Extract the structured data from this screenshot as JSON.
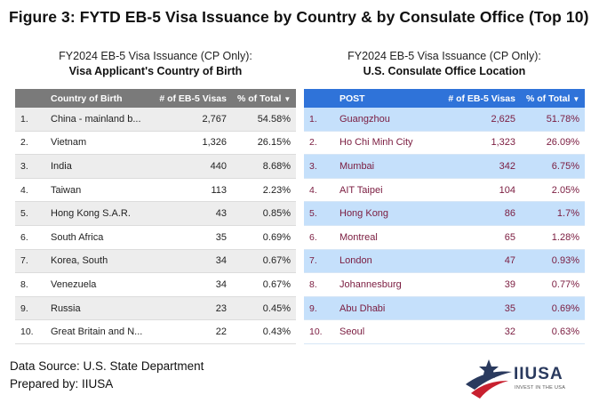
{
  "figure_title": "Figure 3: FYTD EB-5 Visa Issuance by Country & by Consulate Office (Top 10)",
  "left_table": {
    "subtitle": "FY2024 EB-5 Visa Issuance (CP Only):",
    "title": "Visa Applicant's Country of Birth",
    "columns": [
      "",
      "Country of Birth",
      "# of EB-5 Visas",
      "% of Total"
    ],
    "sort_arrow": "▼",
    "rows": [
      {
        "rank": "1.",
        "name": "China - mainland b...",
        "visas": "2,767",
        "pct": "54.58%"
      },
      {
        "rank": "2.",
        "name": "Vietnam",
        "visas": "1,326",
        "pct": "26.15%"
      },
      {
        "rank": "3.",
        "name": "India",
        "visas": "440",
        "pct": "8.68%"
      },
      {
        "rank": "4.",
        "name": "Taiwan",
        "visas": "113",
        "pct": "2.23%"
      },
      {
        "rank": "5.",
        "name": "Hong Kong S.A.R.",
        "visas": "43",
        "pct": "0.85%"
      },
      {
        "rank": "6.",
        "name": "South Africa",
        "visas": "35",
        "pct": "0.69%"
      },
      {
        "rank": "7.",
        "name": "Korea, South",
        "visas": "34",
        "pct": "0.67%"
      },
      {
        "rank": "8.",
        "name": "Venezuela",
        "visas": "34",
        "pct": "0.67%"
      },
      {
        "rank": "9.",
        "name": "Russia",
        "visas": "23",
        "pct": "0.45%"
      },
      {
        "rank": "10.",
        "name": "Great Britain and N...",
        "visas": "22",
        "pct": "0.43%"
      }
    ]
  },
  "right_table": {
    "subtitle": "FY2024 EB-5 Visa Issuance (CP Only):",
    "title": "U.S. Consulate Office Location",
    "columns": [
      "",
      "POST",
      "# of EB-5 Visas",
      "% of Total"
    ],
    "sort_arrow": "▼",
    "rows": [
      {
        "rank": "1.",
        "name": "Guangzhou",
        "visas": "2,625",
        "pct": "51.78%"
      },
      {
        "rank": "2.",
        "name": "Ho Chi Minh City",
        "visas": "1,323",
        "pct": "26.09%"
      },
      {
        "rank": "3.",
        "name": "Mumbai",
        "visas": "342",
        "pct": "6.75%"
      },
      {
        "rank": "4.",
        "name": "AIT Taipei",
        "visas": "104",
        "pct": "2.05%"
      },
      {
        "rank": "5.",
        "name": "Hong Kong",
        "visas": "86",
        "pct": "1.7%"
      },
      {
        "rank": "6.",
        "name": "Montreal",
        "visas": "65",
        "pct": "1.28%"
      },
      {
        "rank": "7.",
        "name": "London",
        "visas": "47",
        "pct": "0.93%"
      },
      {
        "rank": "8.",
        "name": "Johannesburg",
        "visas": "39",
        "pct": "0.77%"
      },
      {
        "rank": "9.",
        "name": "Abu Dhabi",
        "visas": "35",
        "pct": "0.69%"
      },
      {
        "rank": "10.",
        "name": "Seoul",
        "visas": "32",
        "pct": "0.63%"
      }
    ]
  },
  "footer": {
    "source": "Data Source: U.S. State Department",
    "prepared": "Prepared by: IIUSA"
  },
  "logo": {
    "name": "IIUSA",
    "tagline": "INVEST IN THE USA",
    "colors": {
      "navy": "#2a3a5e",
      "red": "#c8202f"
    }
  }
}
